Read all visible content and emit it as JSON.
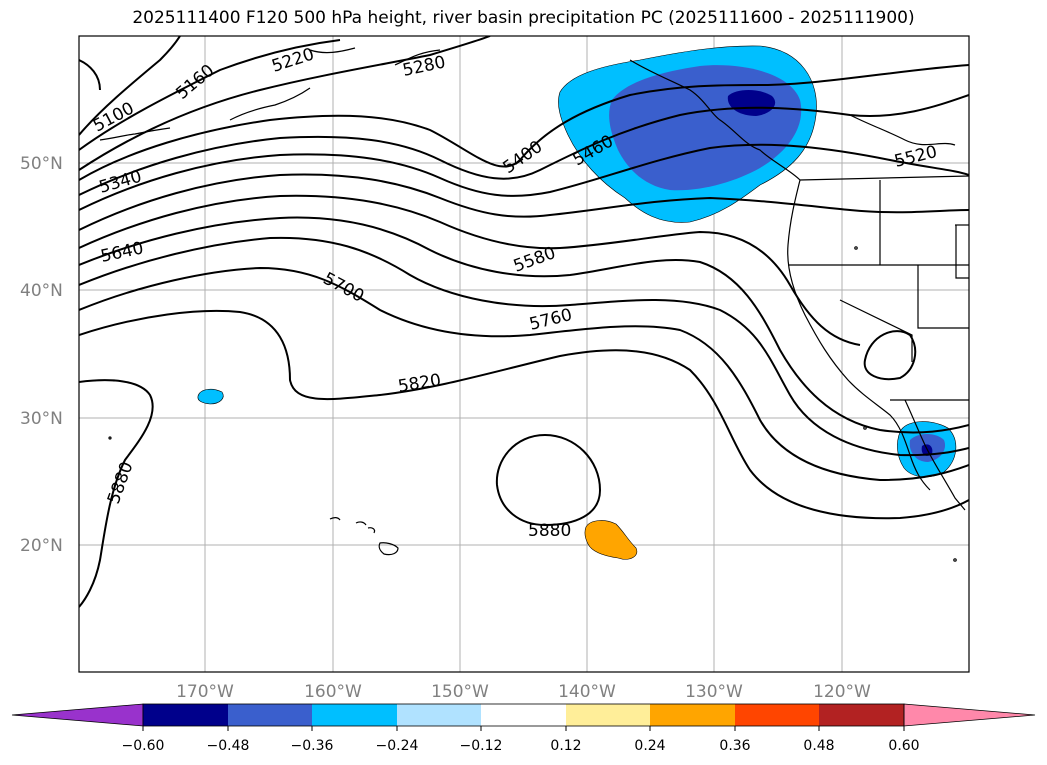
{
  "title": "2025111400 F120 500 hPa height, river basin precipitation PC (2025111600 - 2025111900)",
  "colors": {
    "deep_blue": "#00008b",
    "mid_blue": "#3a5fcd",
    "sky_blue": "#00bfff",
    "light_blue": "#b0e2ff",
    "orange": "#ffa500",
    "contour": "#000000",
    "grid": "#b0b0b0",
    "tick_label": "#808080"
  },
  "axes": {
    "lat_labels": [
      "50°N",
      "40°N",
      "30°N",
      "20°N"
    ],
    "lon_labels": [
      "170°W",
      "160°W",
      "150°W",
      "140°W",
      "130°W",
      "120°W"
    ]
  },
  "contour_labels": [
    "5100",
    "5160",
    "5220",
    "5280",
    "5340",
    "5400",
    "5460",
    "5520",
    "5580",
    "5640",
    "5700",
    "5760",
    "5820",
    "5880",
    "5880"
  ],
  "colorbar": {
    "colors": [
      "#9932cc",
      "#00008b",
      "#3a5fcd",
      "#00bfff",
      "#b0e2ff",
      "#ffffff",
      "#ffee99",
      "#ffa500",
      "#ff4500",
      "#b22222",
      "#ff88aa"
    ],
    "tick_labels": [
      "−0.60",
      "−0.48",
      "−0.36",
      "−0.24",
      "−0.12",
      "0.12",
      "0.24",
      "0.36",
      "0.48",
      "0.60"
    ]
  }
}
